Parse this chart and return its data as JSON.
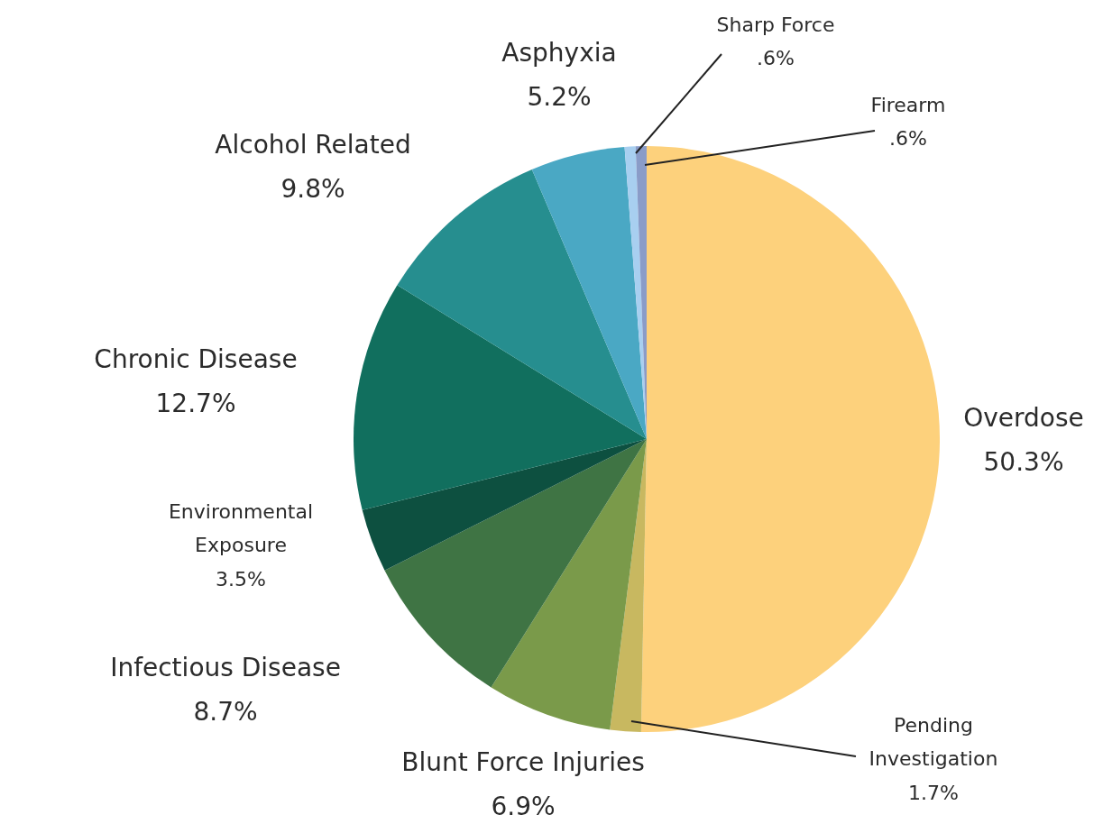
{
  "chart_data": {
    "type": "pie",
    "categories": [
      "Overdose",
      "Pending Investigation",
      "Blunt Force Injuries",
      "Infectious Disease",
      "Environmental Exposure",
      "Chronic Disease",
      "Alcohol Related",
      "Asphyxia",
      "Sharp Force",
      "Firearm"
    ],
    "values": [
      50.3,
      1.7,
      6.9,
      8.7,
      3.5,
      12.7,
      9.8,
      5.2,
      0.6,
      0.6
    ],
    "value_labels": [
      "50.3%",
      "1.7%",
      "6.9%",
      "8.7%",
      "3.5%",
      "12.7%",
      "9.8%",
      "5.2%",
      ".6%",
      ".6%"
    ],
    "colors": [
      "#fdd17c",
      "#c8b860",
      "#7a9a4a",
      "#3f7444",
      "#0d5040",
      "#116f5e",
      "#268e8f",
      "#4aa8c4",
      "#a8cff0",
      "#8a9cc8"
    ],
    "legend": false
  }
}
